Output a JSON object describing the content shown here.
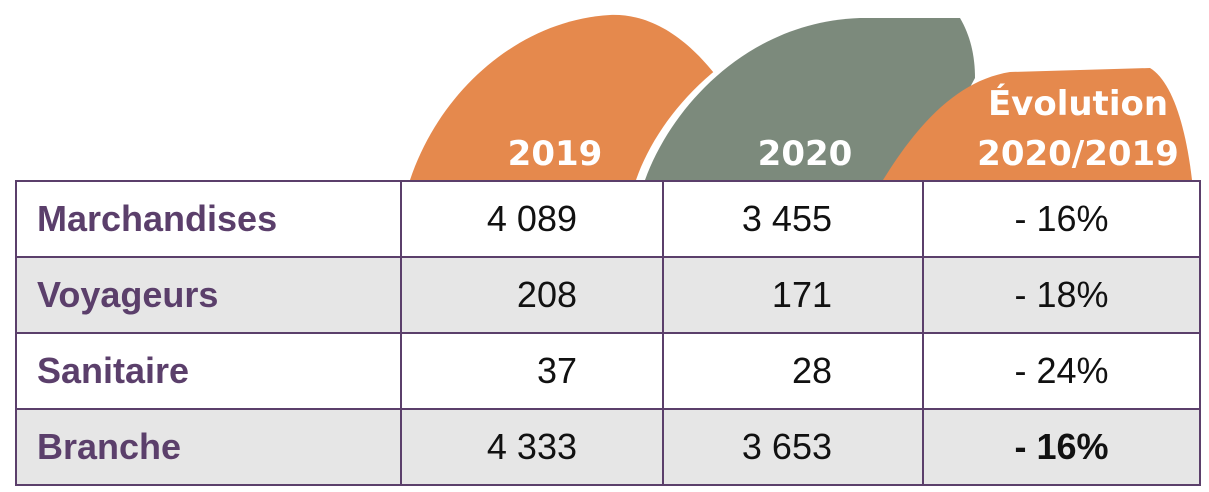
{
  "header": {
    "columns": [
      "2019",
      "2020"
    ],
    "evolution": [
      "Évolution",
      "2020/2019"
    ]
  },
  "table": {
    "rows": [
      [
        "Marchandises",
        "4 089",
        "3 455",
        "- 16%"
      ],
      [
        "Voyageurs",
        "208",
        "171",
        "- 18%"
      ],
      [
        "Sanitaire",
        "37",
        "28",
        "- 24%"
      ],
      [
        "Branche",
        "4 333",
        "3 653",
        "- 16%"
      ]
    ]
  }
}
